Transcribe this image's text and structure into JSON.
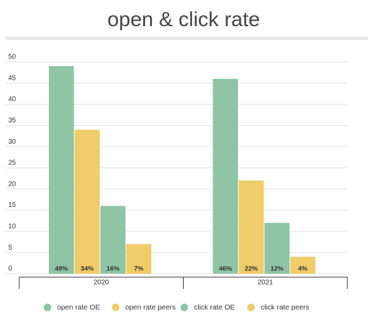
{
  "chart_data": {
    "type": "bar",
    "title": "open & click rate",
    "categories": [
      "2020",
      "2021"
    ],
    "series": [
      {
        "name": "open rate OE",
        "color": "#8fc4a5",
        "values": [
          49,
          46
        ],
        "value_labels": [
          "49%",
          "46%"
        ]
      },
      {
        "name": "open rate peers",
        "color": "#f0cc6a",
        "values": [
          34,
          22
        ],
        "value_labels": [
          "34%",
          "22%"
        ]
      },
      {
        "name": "click rate OE",
        "color": "#8fc4a5",
        "values": [
          16,
          12
        ],
        "value_labels": [
          "16%",
          "12%"
        ]
      },
      {
        "name": "click rate peers",
        "color": "#f0cc6a",
        "values": [
          7,
          4
        ],
        "value_labels": [
          "7%",
          "4%"
        ]
      }
    ],
    "ylim": [
      0,
      50
    ],
    "yticks": [
      0,
      5,
      10,
      15,
      20,
      25,
      30,
      35,
      40,
      45,
      50
    ],
    "grid": true,
    "legend": "bottom"
  }
}
